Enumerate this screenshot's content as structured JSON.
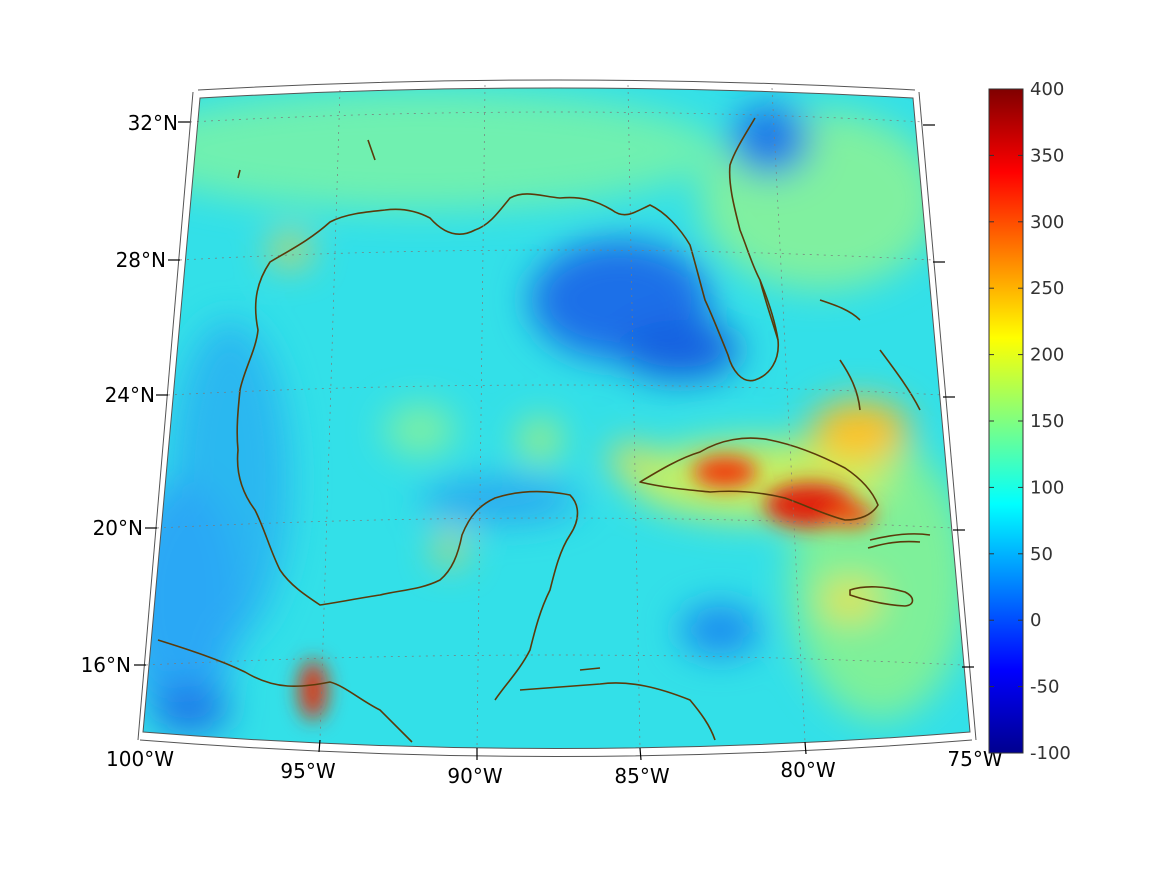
{
  "map": {
    "lon_labels": [
      "100°W",
      "95°W",
      "90°W",
      "85°W",
      "80°W",
      "75°W"
    ],
    "lat_labels": [
      "32°N",
      "28°N",
      "24°N",
      "20°N",
      "16°N"
    ],
    "lon_range": [
      -100,
      -75
    ],
    "lat_range": [
      14,
      33
    ],
    "colormap": "jet",
    "coast_color": "#5a3a0a"
  },
  "colorbar": {
    "ticks": [
      "400",
      "350",
      "300",
      "250",
      "200",
      "150",
      "100",
      "50",
      "0",
      "-50",
      "-100"
    ],
    "range": [
      -100,
      400
    ],
    "colors": [
      "#00008f",
      "#0000ff",
      "#0080ff",
      "#00ffff",
      "#80ff80",
      "#ffff00",
      "#ff8000",
      "#ff0000",
      "#800000"
    ]
  }
}
